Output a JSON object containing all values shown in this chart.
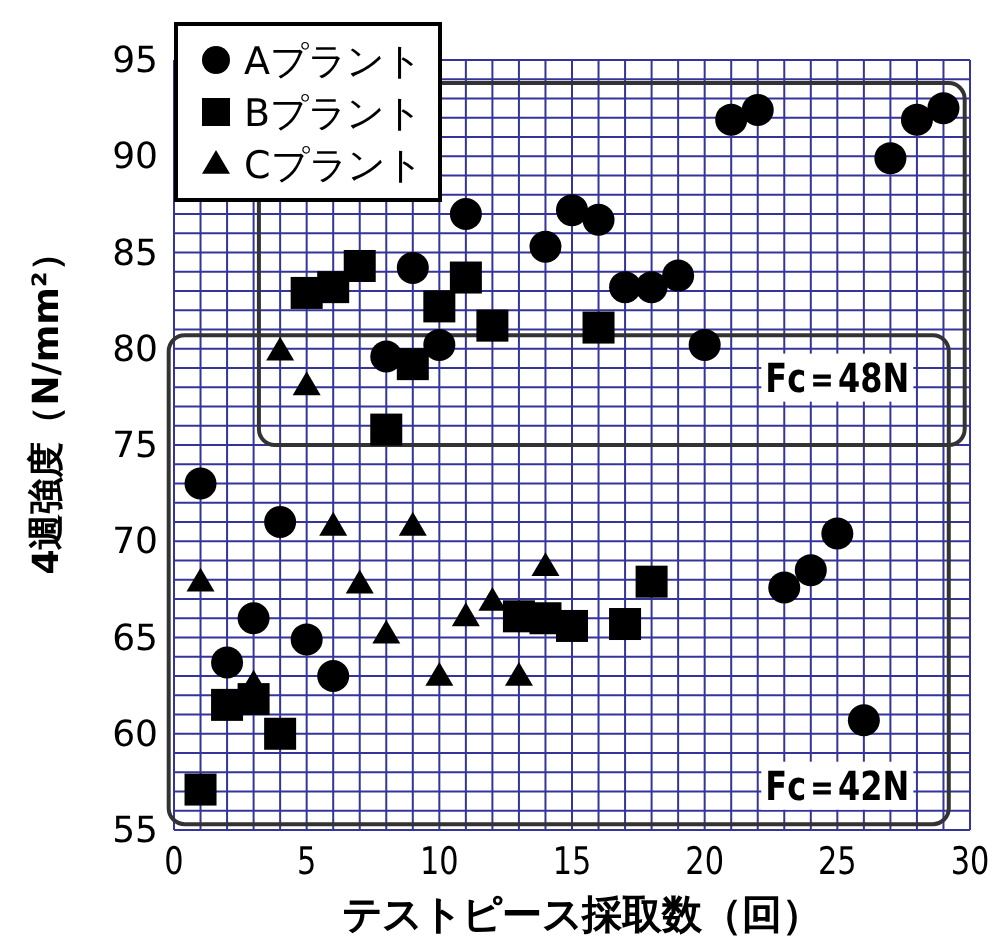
{
  "chart_data": {
    "type": "scatter",
    "xlabel": "テストピース採取数（回）",
    "ylabel": "4週強度（N/mm²）",
    "xlim": [
      0,
      30
    ],
    "ylim": [
      55,
      95
    ],
    "xticks": [
      0,
      5,
      10,
      15,
      20,
      25,
      30
    ],
    "yticks": [
      55,
      60,
      65,
      70,
      75,
      80,
      85,
      90,
      95
    ],
    "grid": true,
    "legend": "top left",
    "annotations": [
      "Fc＝48N",
      "Fc＝42N"
    ],
    "series": [
      {
        "name": "Aプラント",
        "color": "#000000",
        "marker": "circle",
        "x": [
          1,
          2,
          3,
          4,
          5,
          6,
          8,
          9,
          10,
          11,
          14,
          15,
          16,
          17,
          18,
          19,
          20,
          21,
          22,
          23,
          24,
          25,
          26,
          27,
          28,
          29
        ],
        "values": [
          73,
          63.7,
          66,
          71,
          64.9,
          63,
          79.6,
          84.2,
          80.2,
          87,
          85.3,
          87.2,
          86.7,
          83.2,
          83.2,
          83.8,
          80.2,
          91.9,
          92.4,
          67.6,
          68.5,
          70.4,
          60.7,
          89.9,
          91.9,
          92.5
        ]
      },
      {
        "name": "Bプラント",
        "color": "#000000",
        "marker": "square",
        "x": [
          1,
          2,
          3,
          4,
          5,
          6,
          7,
          8,
          9,
          10,
          11,
          12,
          13,
          14,
          15,
          16,
          17,
          18
        ],
        "values": [
          57.1,
          61.5,
          61.8,
          60,
          82.9,
          83.2,
          84.3,
          75.8,
          79.2,
          82.2,
          83.7,
          81.2,
          66.1,
          66,
          65.6,
          81.1,
          65.7,
          67.9
        ]
      },
      {
        "name": "Cプラント",
        "color": "#000000",
        "marker": "triangle",
        "x": [
          1,
          3,
          4,
          5,
          6,
          7,
          8,
          9,
          10,
          11,
          12,
          13,
          14
        ],
        "values": [
          67.9,
          62.6,
          79.9,
          78.1,
          70.8,
          67.8,
          65.2,
          70.8,
          63,
          66.1,
          66.9,
          63,
          68.7
        ]
      }
    ]
  }
}
